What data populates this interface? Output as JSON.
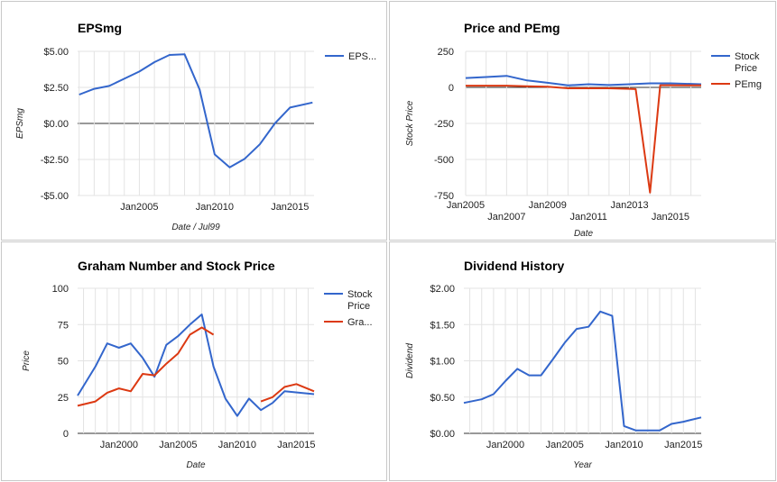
{
  "colors": {
    "blue": "#3366cc",
    "red": "#dc3912"
  },
  "chart_data": [
    {
      "type": "line",
      "title": "EPSmg",
      "xlabel": "Date / Jul99",
      "ylabel": "EPSmg",
      "xlim": [
        2000.9,
        2016.6
      ],
      "ylim": [
        -5,
        5
      ],
      "yticks": [
        {
          "v": 5,
          "label": "$5.00"
        },
        {
          "v": 2.5,
          "label": "$2.50"
        },
        {
          "v": 0,
          "label": "$0.00"
        },
        {
          "v": -2.5,
          "label": "-$2.50"
        },
        {
          "v": -5,
          "label": "-$5.00"
        }
      ],
      "xticks": [
        {
          "v": 2005,
          "label": "Jan2005"
        },
        {
          "v": 2010,
          "label": "Jan2010"
        },
        {
          "v": 2015,
          "label": "Jan2015"
        }
      ],
      "series": [
        {
          "name": "EPS...",
          "color": "#3366cc",
          "x": [
            2001,
            2002,
            2003,
            2004,
            2005,
            2006,
            2007,
            2008,
            2009,
            2010,
            2011,
            2012,
            2013,
            2014,
            2015,
            2016.5
          ],
          "y": [
            2.0,
            2.4,
            2.6,
            3.1,
            3.6,
            4.25,
            4.75,
            4.8,
            2.35,
            -2.15,
            -3.05,
            -2.45,
            -1.45,
            0.0,
            1.1,
            1.45
          ]
        }
      ]
    },
    {
      "type": "line",
      "title": "Price and PEmg",
      "xlabel": "Date",
      "ylabel": "Stock Price",
      "xlim": [
        2005,
        2016.5
      ],
      "ylim": [
        -750,
        250
      ],
      "yticks": [
        {
          "v": 250,
          "label": "250"
        },
        {
          "v": 0,
          "label": "0"
        },
        {
          "v": -250,
          "label": "-250"
        },
        {
          "v": -500,
          "label": "-500"
        },
        {
          "v": -750,
          "label": "-750"
        }
      ],
      "xticks": [
        {
          "v": 2005,
          "label": "Jan2005",
          "row": 0
        },
        {
          "v": 2007,
          "label": "Jan2007",
          "row": 1
        },
        {
          "v": 2009,
          "label": "Jan2009",
          "row": 0
        },
        {
          "v": 2011,
          "label": "Jan2011",
          "row": 1
        },
        {
          "v": 2013,
          "label": "Jan2013",
          "row": 0
        },
        {
          "v": 2015,
          "label": "Jan2015",
          "row": 1
        }
      ],
      "series": [
        {
          "name": "Stock Price",
          "color": "#3366cc",
          "x": [
            2005,
            2006,
            2007,
            2008,
            2009,
            2010,
            2011,
            2012,
            2013,
            2014,
            2015,
            2016.5
          ],
          "y": [
            65,
            72,
            80,
            48,
            32,
            14,
            22,
            16,
            22,
            28,
            28,
            22
          ]
        },
        {
          "name": "PEmg",
          "color": "#dc3912",
          "x": [
            2005,
            2006,
            2007,
            2008,
            2009,
            2010,
            2011,
            2012,
            2013,
            2013.3,
            2014.0,
            2014.5,
            2015,
            2016.5
          ],
          "y": [
            12,
            12,
            12,
            8,
            5,
            -6,
            -6,
            -6,
            -10,
            -12,
            -730,
            15,
            15,
            14
          ]
        }
      ]
    },
    {
      "type": "line",
      "title": "Graham Number and Stock Price",
      "xlabel": "Date",
      "ylabel": "Price",
      "xlim": [
        1996.5,
        2016.5
      ],
      "ylim": [
        0,
        100
      ],
      "yticks": [
        {
          "v": 100,
          "label": "100"
        },
        {
          "v": 75,
          "label": "75"
        },
        {
          "v": 50,
          "label": "50"
        },
        {
          "v": 25,
          "label": "25"
        },
        {
          "v": 0,
          "label": "0"
        }
      ],
      "xticks": [
        {
          "v": 2000,
          "label": "Jan2000"
        },
        {
          "v": 2005,
          "label": "Jan2005"
        },
        {
          "v": 2010,
          "label": "Jan2010"
        },
        {
          "v": 2015,
          "label": "Jan2015"
        }
      ],
      "series": [
        {
          "name": "Stock Price",
          "color": "#3366cc",
          "x": [
            1996.5,
            1998,
            1999,
            2000,
            2001,
            2002,
            2003,
            2004,
            2005,
            2006,
            2007,
            2008,
            2009,
            2010,
            2011,
            2012,
            2013,
            2014,
            2016.5
          ],
          "y": [
            26,
            46,
            62,
            59,
            62,
            52,
            39,
            61,
            67,
            75,
            82,
            46,
            24,
            12,
            24,
            16,
            21,
            29,
            27
          ]
        },
        {
          "name": "Gra...",
          "color": "#dc3912",
          "segments": [
            {
              "x": [
                1996.5,
                1998,
                1999,
                2000,
                2001,
                2002,
                2003,
                2004,
                2005,
                2006,
                2007,
                2008
              ],
              "y": [
                19,
                22,
                28,
                31,
                29,
                41,
                40,
                48,
                55,
                68,
                73,
                68
              ]
            },
            {
              "x": [
                2012,
                2013,
                2014,
                2015,
                2016.5
              ],
              "y": [
                22,
                25,
                32,
                34,
                29
              ]
            }
          ]
        }
      ]
    },
    {
      "type": "line",
      "title": "Dividend History",
      "xlabel": "Year",
      "ylabel": "Dividend",
      "xlim": [
        1996.5,
        2016.5
      ],
      "ylim": [
        0,
        2
      ],
      "yticks": [
        {
          "v": 2,
          "label": "$2.00"
        },
        {
          "v": 1.5,
          "label": "$1.50"
        },
        {
          "v": 1,
          "label": "$1.00"
        },
        {
          "v": 0.5,
          "label": "$0.50"
        },
        {
          "v": 0,
          "label": "$0.00"
        }
      ],
      "xticks": [
        {
          "v": 2000,
          "label": "Jan2000"
        },
        {
          "v": 2005,
          "label": "Jan2005"
        },
        {
          "v": 2010,
          "label": "Jan2010"
        },
        {
          "v": 2015,
          "label": "Jan2015"
        }
      ],
      "series": [
        {
          "color": "#3366cc",
          "x": [
            1996.5,
            1998,
            1999,
            2000,
            2001,
            2002,
            2003,
            2004,
            2005,
            2006,
            2007,
            2008,
            2009,
            2010,
            2011,
            2012,
            2013,
            2014,
            2015,
            2016.5
          ],
          "y": [
            0.42,
            0.47,
            0.54,
            0.72,
            0.89,
            0.8,
            0.8,
            1.02,
            1.25,
            1.44,
            1.47,
            1.68,
            1.62,
            0.1,
            0.04,
            0.04,
            0.04,
            0.13,
            0.16,
            0.22
          ]
        }
      ]
    }
  ]
}
